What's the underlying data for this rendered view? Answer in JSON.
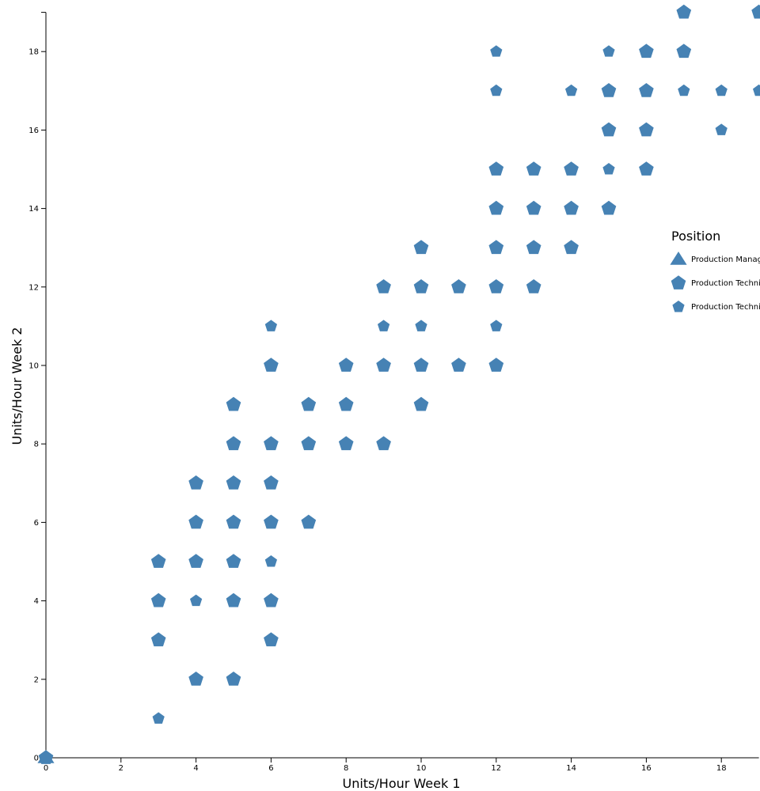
{
  "chart_data": {
    "type": "scatter",
    "xlabel": "Units/Hour Week 1",
    "ylabel": "Units/Hour Week 2",
    "xlim": [
      0,
      19
    ],
    "ylim": [
      0,
      19
    ],
    "x_ticks": [
      "0",
      "2",
      "4",
      "6",
      "8",
      "10",
      "12",
      "14",
      "16",
      "18"
    ],
    "y_ticks": [
      "0",
      "2",
      "4",
      "6",
      "8",
      "10",
      "12",
      "14",
      "16",
      "18"
    ],
    "grid": false,
    "marker_color": "#4682b4",
    "legend": {
      "title": "Position",
      "placement": "right",
      "entries": [
        {
          "label": "Production Manager",
          "shape": "triangle"
        },
        {
          "label": "Production Technician I",
          "shape": "pentagon-large"
        },
        {
          "label": "Production Technician II",
          "shape": "pentagon-small"
        }
      ]
    },
    "series": [
      {
        "name": "Production Manager",
        "shape": "triangle",
        "points": [
          [
            0,
            0
          ]
        ]
      },
      {
        "name": "Production Technician I",
        "shape": "pentagon-large",
        "points": [
          [
            0,
            0
          ],
          [
            3,
            5
          ],
          [
            3,
            4
          ],
          [
            3,
            3
          ],
          [
            4,
            7
          ],
          [
            4,
            6
          ],
          [
            4,
            5
          ],
          [
            4,
            2
          ],
          [
            5,
            9
          ],
          [
            5,
            8
          ],
          [
            5,
            7
          ],
          [
            5,
            6
          ],
          [
            5,
            5
          ],
          [
            5,
            4
          ],
          [
            5,
            2
          ],
          [
            6,
            10
          ],
          [
            6,
            8
          ],
          [
            6,
            7
          ],
          [
            6,
            6
          ],
          [
            6,
            4
          ],
          [
            6,
            3
          ],
          [
            7,
            9
          ],
          [
            7,
            8
          ],
          [
            7,
            6
          ],
          [
            8,
            10
          ],
          [
            8,
            9
          ],
          [
            8,
            8
          ],
          [
            9,
            12
          ],
          [
            9,
            10
          ],
          [
            9,
            8
          ],
          [
            10,
            13
          ],
          [
            10,
            12
          ],
          [
            10,
            10
          ],
          [
            10,
            9
          ],
          [
            11,
            12
          ],
          [
            11,
            10
          ],
          [
            12,
            15
          ],
          [
            12,
            14
          ],
          [
            12,
            13
          ],
          [
            12,
            12
          ],
          [
            12,
            10
          ],
          [
            13,
            15
          ],
          [
            13,
            14
          ],
          [
            13,
            13
          ],
          [
            13,
            12
          ],
          [
            14,
            15
          ],
          [
            14,
            14
          ],
          [
            14,
            13
          ],
          [
            15,
            17
          ],
          [
            15,
            16
          ],
          [
            15,
            14
          ],
          [
            16,
            18
          ],
          [
            16,
            17
          ],
          [
            16,
            16
          ],
          [
            16,
            15
          ],
          [
            17,
            19
          ],
          [
            17,
            18
          ],
          [
            19,
            19
          ]
        ]
      },
      {
        "name": "Production Technician II",
        "shape": "pentagon-small",
        "points": [
          [
            3,
            1
          ],
          [
            4,
            4
          ],
          [
            6,
            11
          ],
          [
            6,
            5
          ],
          [
            9,
            11
          ],
          [
            10,
            11
          ],
          [
            12,
            18
          ],
          [
            12,
            17
          ],
          [
            12,
            11
          ],
          [
            14,
            17
          ],
          [
            15,
            18
          ],
          [
            15,
            15
          ],
          [
            17,
            17
          ],
          [
            18,
            17
          ],
          [
            18,
            16
          ],
          [
            19,
            17
          ]
        ]
      }
    ]
  }
}
